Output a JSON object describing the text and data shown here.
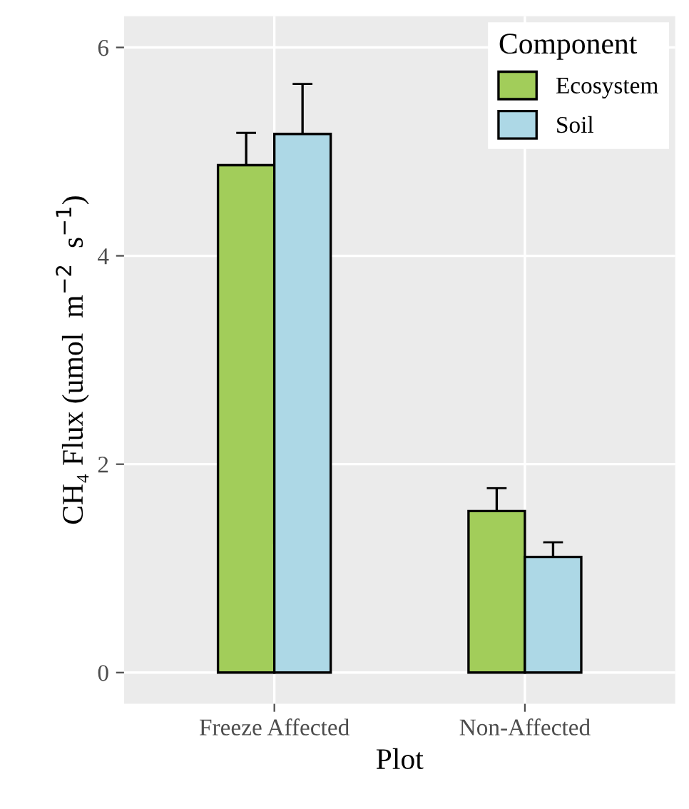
{
  "chart_data": {
    "type": "bar",
    "xlabel": "Plot",
    "ylabel": "CH₄ Flux (umol  m$^{−2}$  s$^{−1}$)",
    "legend_title": "Component",
    "categories": [
      "Freeze Affected",
      "Non-Affected"
    ],
    "series": [
      {
        "name": "Ecosystem",
        "color": "#a2cd5a",
        "values": [
          4.87,
          1.55
        ],
        "errors": [
          0.31,
          0.22
        ]
      },
      {
        "name": "Soil",
        "color": "#add8e6",
        "values": [
          5.17,
          1.11
        ],
        "errors": [
          0.48,
          0.14
        ]
      }
    ],
    "ylim": [
      -0.3,
      6.3
    ],
    "yticks": [
      0,
      2,
      4,
      6
    ],
    "grid": true,
    "legend": "top right"
  }
}
